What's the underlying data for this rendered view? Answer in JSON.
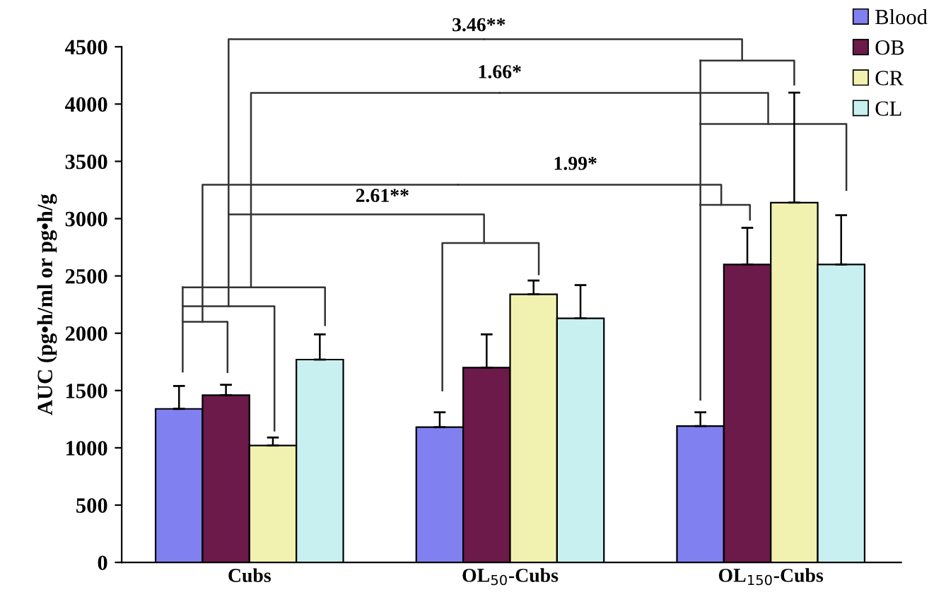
{
  "chart_data": {
    "type": "bar",
    "ylabel": "AUC (pg•h/ml or pg•h/g",
    "categories": [
      "Cubs",
      "OL$_{50}$-Cubs",
      "OL$_{150}$-Cubs"
    ],
    "series": [
      {
        "name": "Blood",
        "color": "#8080f0",
        "values": [
          1340,
          1180,
          1190
        ],
        "errors": [
          [
            1340,
            1540
          ],
          [
            1180,
            1310
          ],
          [
            1190,
            1310
          ]
        ]
      },
      {
        "name": "OB",
        "color": "#6b1a4a",
        "values": [
          1460,
          1700,
          2600
        ],
        "errors": [
          [
            1460,
            1550
          ],
          [
            1700,
            1990
          ],
          [
            2600,
            2920
          ]
        ]
      },
      {
        "name": "CR",
        "color": "#f2f2b0",
        "values": [
          1020,
          2340,
          3140
        ],
        "errors": [
          [
            1020,
            1090
          ],
          [
            2340,
            2460
          ],
          [
            3140,
            4100
          ]
        ]
      },
      {
        "name": "CL",
        "color": "#c8f0f0",
        "values": [
          1770,
          2130,
          2600
        ],
        "errors": [
          [
            1770,
            1990
          ],
          [
            2130,
            2420
          ],
          [
            2600,
            3030
          ]
        ]
      }
    ],
    "ylim": [
      0,
      4500
    ],
    "yticks": [
      0,
      500,
      1000,
      1500,
      2000,
      2500,
      3000,
      3500,
      4000,
      4500
    ],
    "annotations": [
      "3.46**",
      "1.66*",
      "2.61**",
      "1.99*"
    ],
    "legend": "top right",
    "grid": false
  }
}
